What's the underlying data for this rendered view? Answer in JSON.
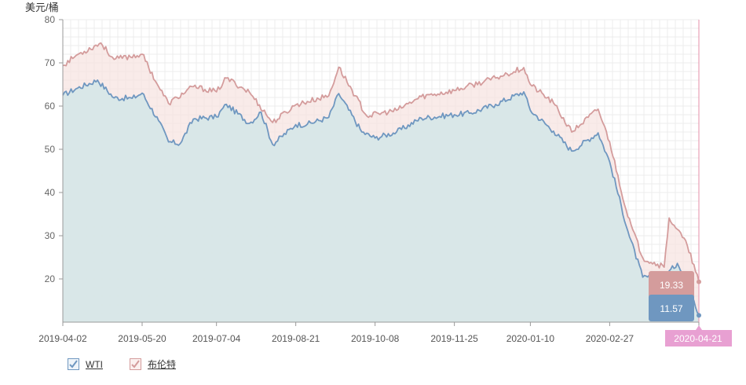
{
  "chart_data": {
    "type": "area",
    "ylabel": "美元/桶",
    "ylim": [
      10,
      80
    ],
    "yticks": [
      20,
      30,
      40,
      50,
      60,
      70,
      80
    ],
    "xticks": [
      "2019-04-02",
      "2019-05-20",
      "2019-07-04",
      "2019-08-21",
      "2019-10-08",
      "2019-11-25",
      "2020-01-10",
      "2020-02-27",
      "2020-04-21"
    ],
    "grid": true,
    "legend_position": "bottom-left",
    "tooltip": {
      "date": "2020-04-21",
      "values": [
        "19.33",
        "11.57"
      ]
    },
    "series": [
      {
        "name": "WTI",
        "color": "#6f97c0",
        "fill": "#d4e6e8",
        "keypoints": [
          [
            "2019-04-02",
            62.5
          ],
          [
            "2019-04-10",
            64.0
          ],
          [
            "2019-04-23",
            66.0
          ],
          [
            "2019-05-03",
            61.9
          ],
          [
            "2019-05-14",
            61.8
          ],
          [
            "2019-05-20",
            63.0
          ],
          [
            "2019-05-30",
            56.6
          ],
          [
            "2019-06-05",
            51.7
          ],
          [
            "2019-06-12",
            51.3
          ],
          [
            "2019-06-20",
            57.0
          ],
          [
            "2019-07-04",
            57.5
          ],
          [
            "2019-07-10",
            60.4
          ],
          [
            "2019-07-24",
            56.0
          ],
          [
            "2019-07-31",
            58.6
          ],
          [
            "2019-08-07",
            51.1
          ],
          [
            "2019-08-21",
            55.7
          ],
          [
            "2019-08-28",
            55.8
          ],
          [
            "2019-09-10",
            57.4
          ],
          [
            "2019-09-16",
            62.9
          ],
          [
            "2019-09-30",
            54.0
          ],
          [
            "2019-10-08",
            52.6
          ],
          [
            "2019-10-21",
            54.0
          ],
          [
            "2019-11-05",
            57.2
          ],
          [
            "2019-11-25",
            58.0
          ],
          [
            "2019-12-05",
            58.4
          ],
          [
            "2019-12-20",
            60.4
          ],
          [
            "2020-01-06",
            63.3
          ],
          [
            "2020-01-10",
            59.0
          ],
          [
            "2020-01-24",
            54.2
          ],
          [
            "2020-02-04",
            49.6
          ],
          [
            "2020-02-20",
            53.8
          ],
          [
            "2020-02-27",
            47.1
          ],
          [
            "2020-03-09",
            31.1
          ],
          [
            "2020-03-18",
            20.4
          ],
          [
            "2020-03-31",
            20.5
          ],
          [
            "2020-04-08",
            23.6
          ],
          [
            "2020-04-14",
            20.1
          ],
          [
            "2020-04-21",
            11.57
          ]
        ]
      },
      {
        "name": "布伦特",
        "color": "#d49c9c",
        "fill": "#f7e4e2",
        "keypoints": [
          [
            "2019-04-02",
            69.4
          ],
          [
            "2019-04-10",
            71.7
          ],
          [
            "2019-04-25",
            74.6
          ],
          [
            "2019-05-03",
            70.8
          ],
          [
            "2019-05-20",
            72.0
          ],
          [
            "2019-05-30",
            64.5
          ],
          [
            "2019-06-05",
            60.6
          ],
          [
            "2019-06-20",
            64.5
          ],
          [
            "2019-07-04",
            63.3
          ],
          [
            "2019-07-10",
            66.5
          ],
          [
            "2019-07-24",
            63.2
          ],
          [
            "2019-08-07",
            56.2
          ],
          [
            "2019-08-21",
            60.3
          ],
          [
            "2019-09-10",
            62.4
          ],
          [
            "2019-09-16",
            69.0
          ],
          [
            "2019-10-03",
            57.7
          ],
          [
            "2019-10-21",
            59.0
          ],
          [
            "2019-11-05",
            62.2
          ],
          [
            "2019-11-25",
            63.6
          ],
          [
            "2019-12-20",
            66.5
          ],
          [
            "2020-01-06",
            68.9
          ],
          [
            "2020-01-10",
            65.0
          ],
          [
            "2020-01-24",
            60.7
          ],
          [
            "2020-02-04",
            54.0
          ],
          [
            "2020-02-20",
            59.3
          ],
          [
            "2020-02-27",
            51.7
          ],
          [
            "2020-03-09",
            34.4
          ],
          [
            "2020-03-18",
            24.9
          ],
          [
            "2020-03-31",
            22.7
          ],
          [
            "2020-04-03",
            34.1
          ],
          [
            "2020-04-08",
            31.5
          ],
          [
            "2020-04-14",
            27.7
          ],
          [
            "2020-04-21",
            19.33
          ]
        ]
      }
    ]
  }
}
